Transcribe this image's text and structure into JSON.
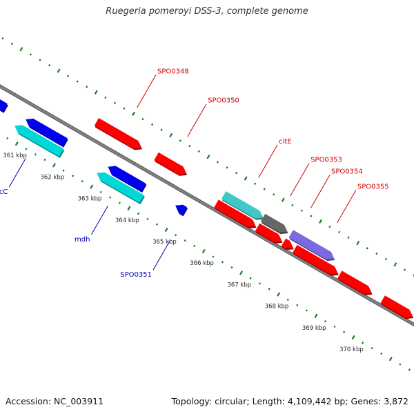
{
  "title": "Ruegeria pomeroyi DSS-3, complete genome",
  "footer": {
    "accession": "Accession: NC_003911",
    "summary": "Topology: circular; Length: 4,109,442 bp; Genes: 3,872"
  },
  "colors": {
    "backbone": "#808080",
    "tick": "#1a7a1a",
    "forward_cds": "#ff0000",
    "reverse_cds": "#0000ee",
    "reverse_rna": "#00d8d8",
    "forward_rna": "#40c8c8",
    "gray_feature": "#666666",
    "purple_feature": "#7a6ae0",
    "forward_label": "#cc0000",
    "reverse_label": "#0000aa",
    "kbp_label": "#222222"
  },
  "scale": {
    "start_kbp": 360,
    "end_kbp": 371,
    "tick_labels": [
      "361 kbp",
      "362 kbp",
      "363 kbp",
      "364 kbp",
      "365 kbp",
      "366 kbp",
      "367 kbp",
      "368 kbp",
      "369 kbp",
      "370 kbp"
    ]
  },
  "features": [
    {
      "strand": "reverse",
      "track": 1,
      "type": "cds",
      "start_kbp": 359.4,
      "end_kbp": 360.35
    },
    {
      "strand": "reverse",
      "track": 2,
      "type": "rna",
      "start_kbp": 359.4,
      "end_kbp": 360.15
    },
    {
      "strand": "reverse",
      "track": 1,
      "type": "cds",
      "start_kbp": 360.9,
      "end_kbp": 361.95
    },
    {
      "strand": "reverse",
      "track": 2,
      "type": "rna",
      "start_kbp": 360.75,
      "end_kbp": 362.0
    },
    {
      "strand": "reverse",
      "track": 1,
      "type": "cds",
      "start_kbp": 363.1,
      "end_kbp": 364.05
    },
    {
      "strand": "reverse",
      "track": 2,
      "type": "rna",
      "start_kbp": 362.95,
      "end_kbp": 364.15
    },
    {
      "strand": "reverse",
      "track": 1,
      "type": "cds",
      "start_kbp": 364.9,
      "end_kbp": 365.15
    },
    {
      "strand": "forward",
      "track": 2,
      "type": "cds",
      "start_kbp": 362.35,
      "end_kbp": 363.55
    },
    {
      "strand": "forward",
      "track": 2,
      "type": "cds",
      "start_kbp": 363.95,
      "end_kbp": 364.75
    },
    {
      "strand": "forward",
      "track": 2,
      "type": "rna",
      "start_kbp": 365.75,
      "end_kbp": 366.8
    },
    {
      "strand": "forward",
      "track": 2,
      "type": "gray",
      "start_kbp": 366.8,
      "end_kbp": 367.45
    },
    {
      "strand": "forward",
      "track": 2,
      "type": "purple",
      "start_kbp": 367.55,
      "end_kbp": 368.7
    },
    {
      "strand": "forward",
      "track": 1,
      "type": "cds",
      "start_kbp": 365.7,
      "end_kbp": 366.75
    },
    {
      "strand": "forward",
      "track": 1,
      "type": "cds",
      "start_kbp": 366.8,
      "end_kbp": 367.45
    },
    {
      "strand": "forward",
      "track": 1,
      "type": "cds",
      "start_kbp": 367.5,
      "end_kbp": 367.75
    },
    {
      "strand": "forward",
      "track": 1,
      "type": "cds",
      "start_kbp": 367.8,
      "end_kbp": 368.95
    },
    {
      "strand": "forward",
      "track": 1,
      "type": "cds",
      "start_kbp": 369.0,
      "end_kbp": 369.85
    },
    {
      "strand": "forward",
      "track": 1,
      "type": "cds",
      "start_kbp": 370.15,
      "end_kbp": 370.95
    }
  ],
  "labels": [
    {
      "text": "SPO0348",
      "side": "forward",
      "anchor_kbp": 363.0
    },
    {
      "text": "SPO0350",
      "side": "forward",
      "anchor_kbp": 364.35
    },
    {
      "text": "citE",
      "side": "forward",
      "anchor_kbp": 366.25
    },
    {
      "text": "SPO0353",
      "side": "forward",
      "anchor_kbp": 367.1
    },
    {
      "text": "SPO0354",
      "side": "forward",
      "anchor_kbp": 367.65
    },
    {
      "text": "SPO0355",
      "side": "forward",
      "anchor_kbp": 368.35
    },
    {
      "text": "sucC",
      "side": "reverse",
      "anchor_kbp": 361.35
    },
    {
      "text": "mdh",
      "side": "reverse",
      "anchor_kbp": 363.55
    },
    {
      "text": "SPO0351",
      "side": "reverse",
      "anchor_kbp": 365.2
    }
  ]
}
